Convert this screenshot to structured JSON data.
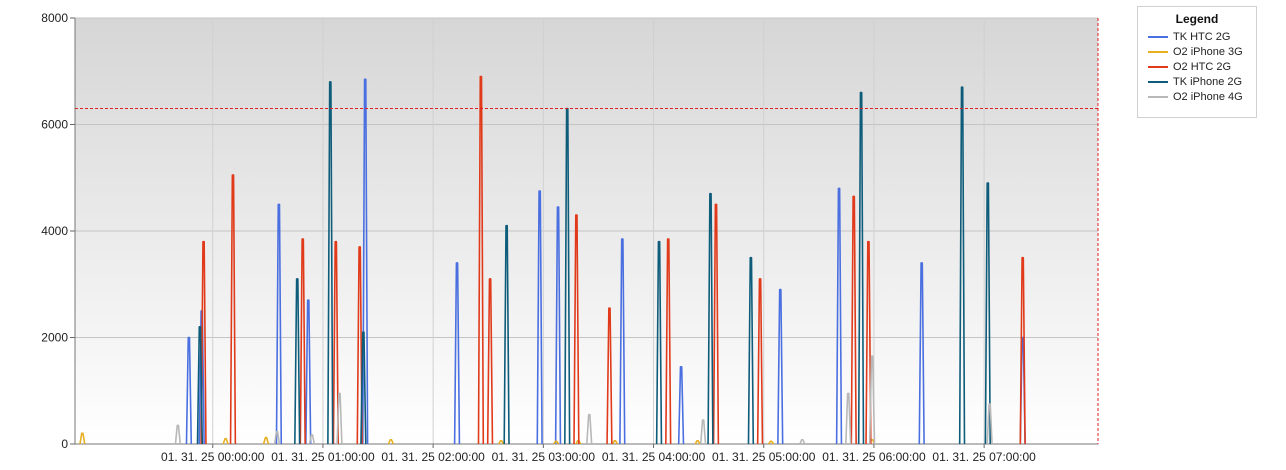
{
  "chart_data": {
    "type": "line",
    "title": "",
    "xlabel": "",
    "ylabel": "",
    "ylim": [
      0,
      8000
    ],
    "y_ticks": [
      "0",
      "2000",
      "4000",
      "6000",
      "8000"
    ],
    "x_tick_labels": [
      "01. 31. 25 00:00:00",
      "01. 31. 25 01:00:00",
      "01. 31. 25 02:00:00",
      "01. 31. 25 03:00:00",
      "01. 31. 25 04:00:00",
      "01. 31. 25 05:00:00",
      "01. 31. 25 06:00:00",
      "01. 31. 25 07:00:00"
    ],
    "x_unit": "minutes after 01. 31. 25 00:00:00",
    "xlim": [
      -75,
      482
    ],
    "threshold": 6300,
    "threshold_color": "#e02020",
    "grid": true,
    "legend_position": "top-right",
    "legend_title": "Legend",
    "series": [
      {
        "name": "TK HTC 2G",
        "color": "#4a6fe0",
        "peaks": [
          [
            -13,
            2000
          ],
          [
            -6,
            2500
          ],
          [
            36,
            4500
          ],
          [
            52,
            2700
          ],
          [
            83,
            6850
          ],
          [
            133,
            3400
          ],
          [
            178,
            4750
          ],
          [
            188,
            4450
          ],
          [
            223,
            3850
          ],
          [
            255,
            1450
          ],
          [
            309,
            2900
          ],
          [
            341,
            4800
          ],
          [
            386,
            3400
          ],
          [
            441,
            2000
          ]
        ]
      },
      {
        "name": "O2 iPhone 3G",
        "color": "#e8b020",
        "peaks": [
          [
            -71,
            200
          ],
          [
            7,
            100
          ],
          [
            29,
            120
          ],
          [
            97,
            80
          ],
          [
            157,
            60
          ],
          [
            187,
            50
          ],
          [
            199,
            60
          ],
          [
            219,
            60
          ],
          [
            264,
            60
          ],
          [
            304,
            50
          ],
          [
            359,
            80
          ]
        ]
      },
      {
        "name": "O2 HTC 2G",
        "color": "#e03a1a",
        "peaks": [
          [
            -5,
            3800
          ],
          [
            11,
            5050
          ],
          [
            49,
            3850
          ],
          [
            67,
            3800
          ],
          [
            80,
            3700
          ],
          [
            146,
            6900
          ],
          [
            151,
            3100
          ],
          [
            198,
            4300
          ],
          [
            216,
            2550
          ],
          [
            248,
            3850
          ],
          [
            274,
            4500
          ],
          [
            298,
            3100
          ],
          [
            349,
            4650
          ],
          [
            357,
            3800
          ],
          [
            441,
            3500
          ]
        ]
      },
      {
        "name": "TK iPhone 2G",
        "color": "#0d5c7a",
        "peaks": [
          [
            -7,
            2200
          ],
          [
            46,
            3100
          ],
          [
            64,
            6800
          ],
          [
            82,
            2100
          ],
          [
            160,
            4100
          ],
          [
            193,
            6300
          ],
          [
            243,
            3800
          ],
          [
            271,
            4700
          ],
          [
            293,
            3500
          ],
          [
            353,
            6600
          ],
          [
            408,
            6700
          ],
          [
            422,
            4900
          ]
        ]
      },
      {
        "name": "O2 iPhone 4G",
        "color": "#b8b8b8",
        "peaks": [
          [
            -19,
            350
          ],
          [
            35,
            230
          ],
          [
            54,
            170
          ],
          [
            69,
            950
          ],
          [
            205,
            550
          ],
          [
            267,
            450
          ],
          [
            321,
            80
          ],
          [
            346,
            950
          ],
          [
            359,
            1650
          ],
          [
            423,
            750
          ]
        ]
      }
    ]
  }
}
